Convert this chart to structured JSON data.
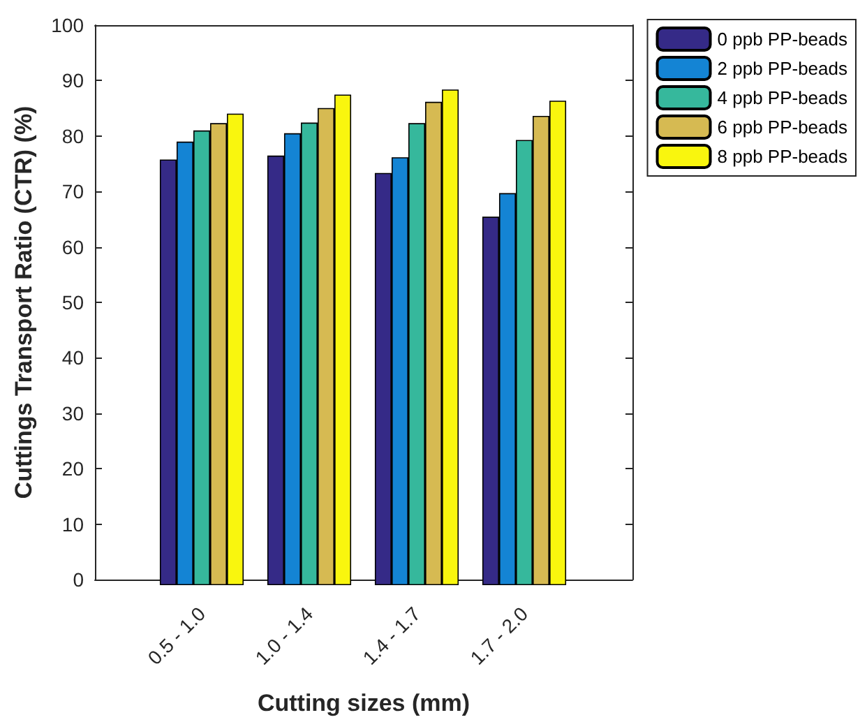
{
  "chart_data": {
    "type": "bar",
    "xlabel": "Cutting sizes (mm)",
    "ylabel": "Cuttings Transport Ratio (CTR) (%)",
    "categories": [
      "0.5 - 1.0",
      "1.0 - 1.4",
      "1.4 - 1.7",
      "1.7 - 2.0"
    ],
    "series": [
      {
        "name": "0 ppb PP-beads",
        "color": "#352a87",
        "values": [
          76.0,
          76.7,
          73.6,
          65.8
        ]
      },
      {
        "name": "2 ppb PP-beads",
        "color": "#1484d4",
        "values": [
          79.2,
          80.7,
          76.4,
          70.0
        ]
      },
      {
        "name": "4 ppb PP-beads",
        "color": "#36b89c",
        "values": [
          81.2,
          82.6,
          82.5,
          79.5
        ]
      },
      {
        "name": "6 ppb PP-beads",
        "color": "#d6ba52",
        "values": [
          82.5,
          85.2,
          86.3,
          83.8
        ]
      },
      {
        "name": "8 ppb PP-beads",
        "color": "#f9f60e",
        "values": [
          84.2,
          87.6,
          88.5,
          86.5
        ]
      }
    ],
    "ylim": [
      0,
      100
    ],
    "yticks": [
      0,
      10,
      20,
      30,
      40,
      50,
      60,
      70,
      80,
      90,
      100
    ],
    "grid": false,
    "legend": "top right"
  }
}
